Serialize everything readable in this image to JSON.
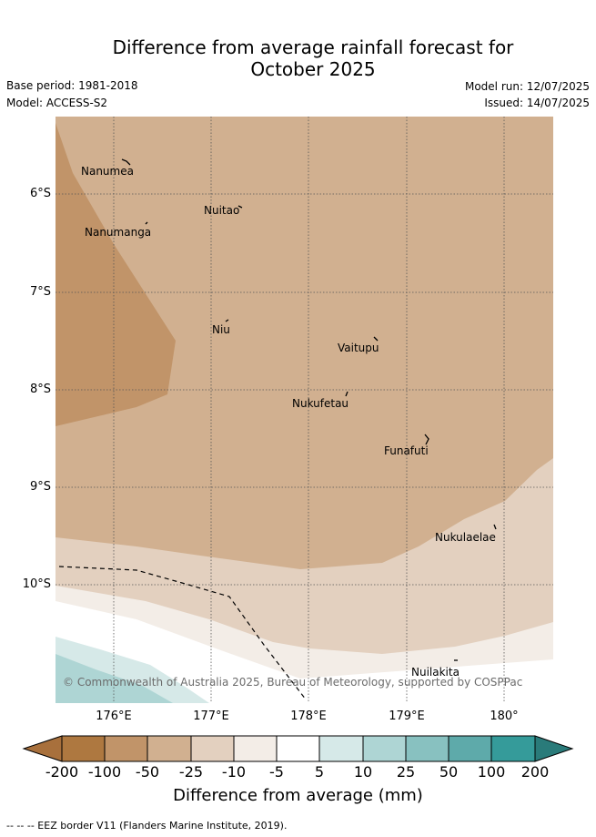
{
  "title": {
    "line1": "Difference from average rainfall forecast for",
    "line2": "October 2025"
  },
  "meta": {
    "base_period": "Base period: 1981-2018",
    "model": "Model: ACCESS-S2",
    "model_run": "Model run: 12/07/2025",
    "issued": "Issued: 14/07/2025"
  },
  "axes": {
    "lat_labels": [
      "6°S",
      "7°S",
      "8°S",
      "9°S",
      "10°S"
    ],
    "lon_labels": [
      "176°E",
      "177°E",
      "178°E",
      "179°E",
      "180°"
    ]
  },
  "places": [
    {
      "name": "Nanumea"
    },
    {
      "name": "Nuitao"
    },
    {
      "name": "Nanumanga"
    },
    {
      "name": "Niu"
    },
    {
      "name": "Vaitupu"
    },
    {
      "name": "Nukufetau"
    },
    {
      "name": "Funafuti"
    },
    {
      "name": "Nukulaelae"
    },
    {
      "name": "Nuilakita"
    }
  ],
  "copyright": "© Commonwealth of Australia 2025, Bureau of Meteorology, supported by COSPPac",
  "colorbar": {
    "ticks": [
      "-200",
      "-100",
      "-50",
      "-25",
      "-10",
      "-5",
      "5",
      "10",
      "25",
      "50",
      "100",
      "200"
    ],
    "colors": [
      "#a8703c",
      "#ae7840",
      "#c19469",
      "#d1b090",
      "#e3d0bf",
      "#f3ede7",
      "#ffffff",
      "#d6e9e8",
      "#aed5d4",
      "#88c1c0",
      "#5eaaaa",
      "#359b9a",
      "#2a7b7a"
    ],
    "title": "Difference from average (mm)"
  },
  "footnote": "--  --  -- EEZ border V11 (Flanders Marine Institute, 2019)."
}
